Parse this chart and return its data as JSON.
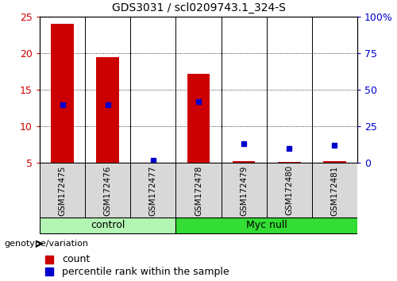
{
  "title": "GDS3031 / scl0209743.1_324-S",
  "samples": [
    "GSM172475",
    "GSM172476",
    "GSM172477",
    "GSM172478",
    "GSM172479",
    "GSM172480",
    "GSM172481"
  ],
  "count_values": [
    24.0,
    19.5,
    5.0,
    17.2,
    5.2,
    5.1,
    5.2
  ],
  "percentile_values": [
    40,
    40,
    2,
    42,
    13,
    10,
    12
  ],
  "ylim_left": [
    5,
    25
  ],
  "ylim_right": [
    0,
    100
  ],
  "yticks_left": [
    5,
    10,
    15,
    20,
    25
  ],
  "yticks_right": [
    0,
    25,
    50,
    75,
    100
  ],
  "bar_color": "#cc0000",
  "dot_color": "#0000cc",
  "bar_width": 0.5,
  "group_control_label": "control",
  "group_myc_label": "Myc null",
  "group_control_indices": [
    0,
    1,
    2
  ],
  "group_myc_indices": [
    3,
    4,
    5,
    6
  ],
  "group_control_color": "#b3f5b3",
  "group_myc_color": "#33dd33",
  "legend_label_count": "count",
  "legend_label_pct": "percentile rank within the sample",
  "genotype_label": "genotype/variation",
  "plot_bg": "#ffffff",
  "tick_label_color_left": "#cc0000",
  "tick_label_color_right": "#0000cc",
  "grid_color": "#000000",
  "sample_cell_bg": "#d8d8d8"
}
